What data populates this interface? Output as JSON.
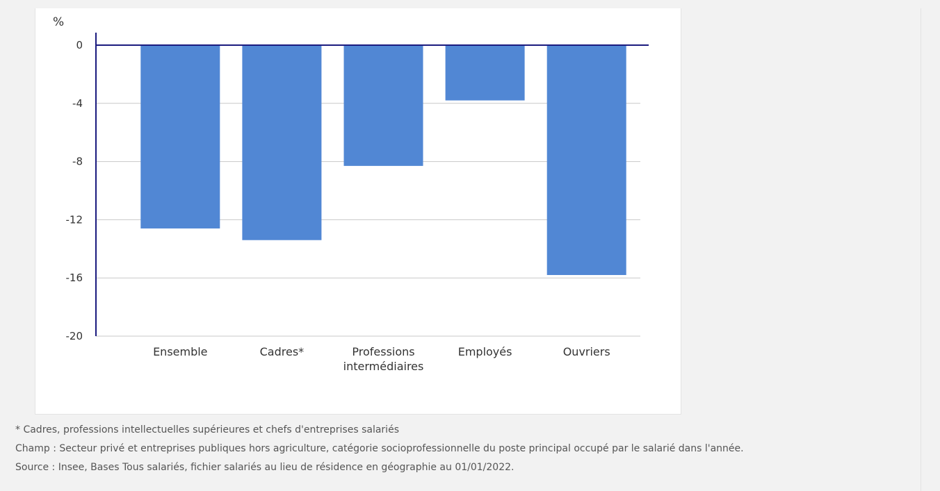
{
  "chart_data": {
    "type": "bar",
    "unit_label": "%",
    "categories": [
      "Ensemble",
      "Cadres*",
      "Professions intermédiaires",
      "Employés",
      "Ouvriers"
    ],
    "category_lines": [
      [
        "Ensemble"
      ],
      [
        "Cadres*"
      ],
      [
        "Professions",
        "intermédiaires"
      ],
      [
        "Employés"
      ],
      [
        "Ouvriers"
      ]
    ],
    "values": [
      -12.6,
      -13.4,
      -8.3,
      -3.8,
      -15.8
    ],
    "ylim": [
      -20,
      0
    ],
    "yticks": [
      0,
      -4,
      -8,
      -12,
      -16,
      -20
    ],
    "grid": true,
    "bar_color": "#5187d4",
    "axis_color": "#1a1a7e",
    "grid_color": "#c8c8c8"
  },
  "notes": {
    "footnote": "* Cadres, professions intellectuelles supérieures et chefs d'entreprises salariés",
    "champ": "Champ : Secteur privé et entreprises publiques hors agriculture, catégorie socioprofessionnelle du poste principal occupé par le salarié dans l'année.",
    "source": "Source : Insee, Bases Tous salariés, fichier salariés au lieu de résidence en géographie au 01/01/2022."
  }
}
